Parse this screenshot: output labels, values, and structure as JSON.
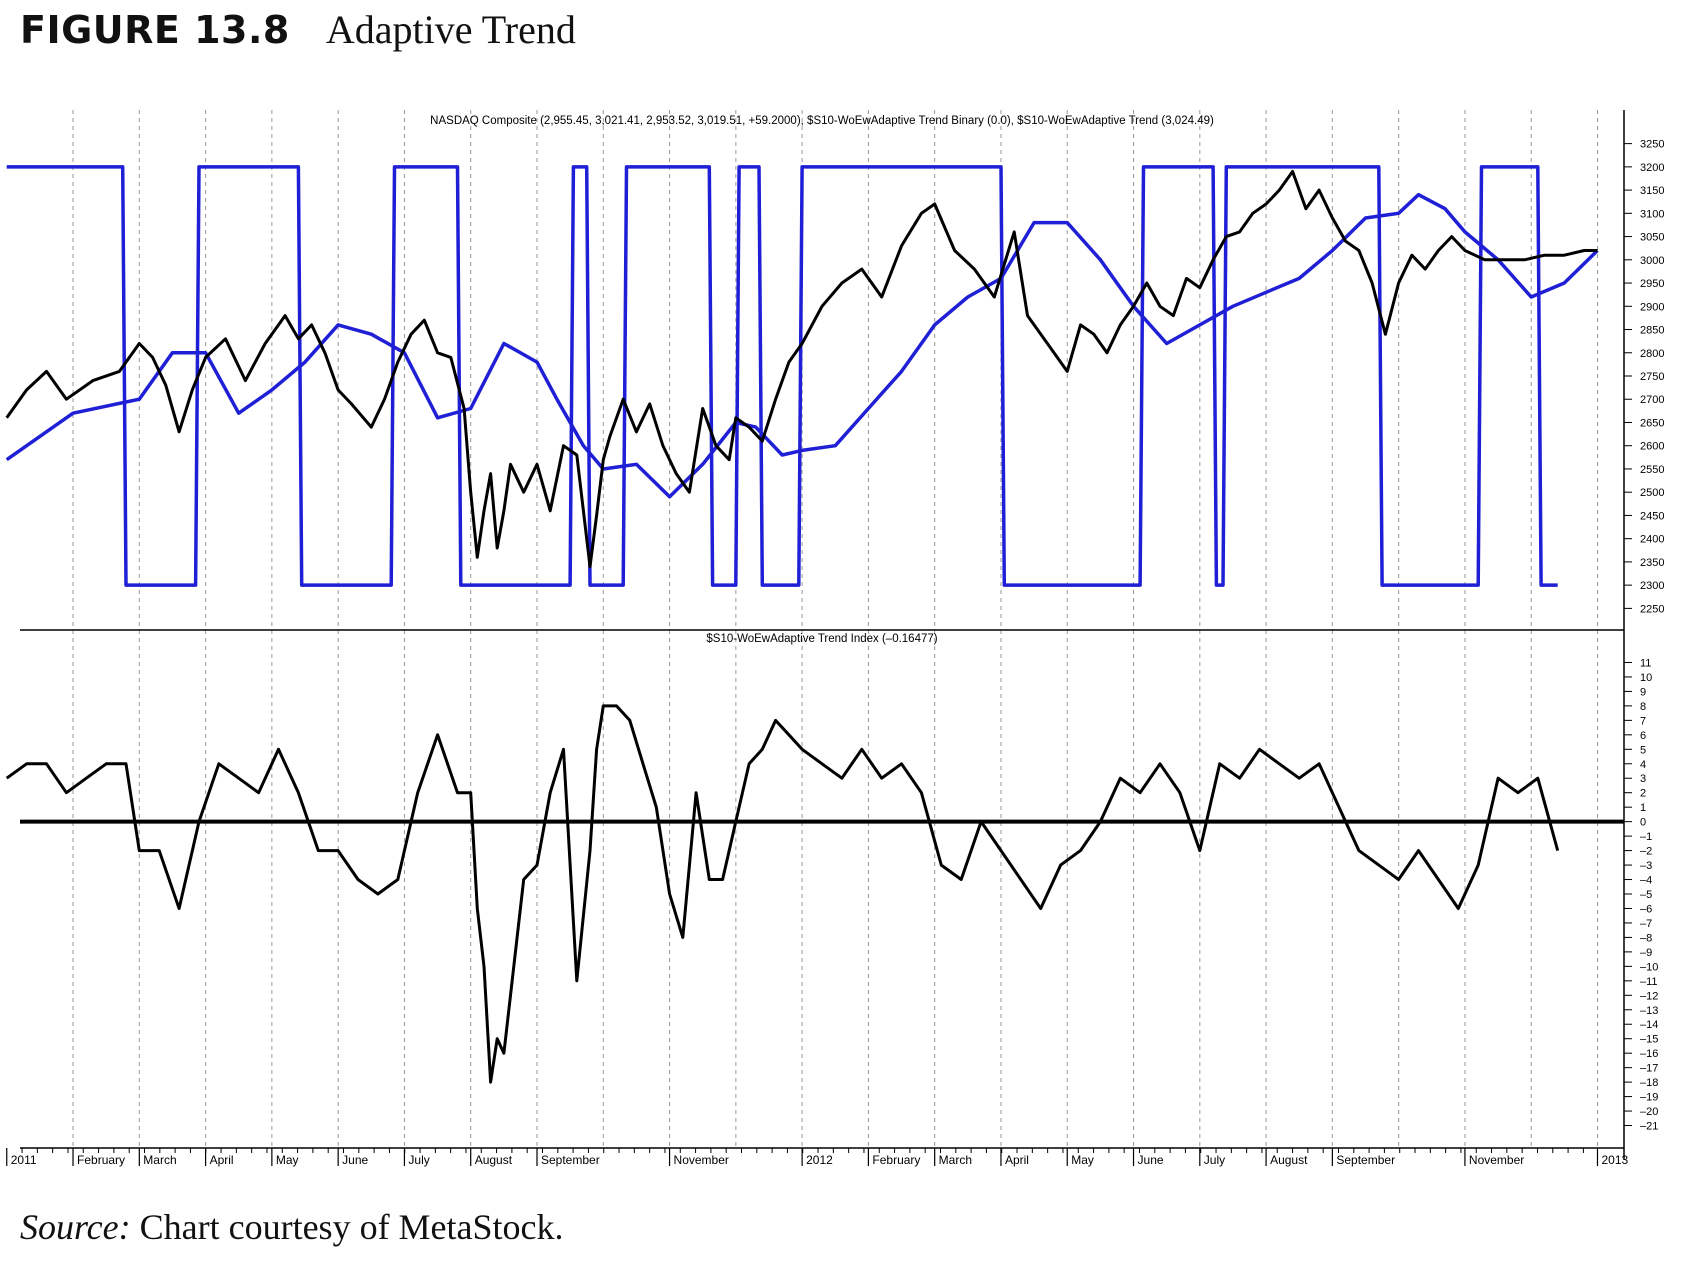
{
  "figure": {
    "number": "FIGURE 13.8",
    "title": "Adaptive Trend",
    "source_label": "Source:",
    "source_text": "Chart courtesy of MetaStock."
  },
  "colors": {
    "price": "#000000",
    "trend": "#1f1fd6",
    "grid": "#9a9a9a"
  },
  "chart_data": [
    {
      "type": "line",
      "title": "NASDAQ Composite (2,955.45, 3,021.41, 2,953.52, 3,019.51, +59.2000), $S10-WoEwAdaptive Trend Binary (0.0), $S10-WoEwAdaptive Trend  (3,024.49)",
      "ylim": [
        2225,
        3275
      ],
      "yticks": [
        3250,
        3200,
        3150,
        3100,
        3050,
        3000,
        2950,
        2900,
        2850,
        2800,
        2750,
        2700,
        2650,
        2600,
        2550,
        2500,
        2450,
        2400,
        2350,
        2300,
        2250
      ],
      "x_months": [
        0,
        1,
        2,
        3,
        4,
        5,
        6,
        7,
        8,
        9,
        10,
        11,
        12,
        13,
        14,
        15,
        16,
        17,
        18,
        19,
        20,
        21,
        22,
        23,
        24
      ],
      "series": [
        {
          "key": "price",
          "x": [
            0,
            0.3,
            0.6,
            0.9,
            1.3,
            1.7,
            2.0,
            2.2,
            2.4,
            2.6,
            2.8,
            3.0,
            3.3,
            3.6,
            3.9,
            4.2,
            4.4,
            4.6,
            4.8,
            5.0,
            5.2,
            5.5,
            5.7,
            5.9,
            6.1,
            6.3,
            6.5,
            6.7,
            6.9,
            7.0,
            7.1,
            7.2,
            7.3,
            7.4,
            7.5,
            7.6,
            7.8,
            8.0,
            8.2,
            8.4,
            8.6,
            8.8,
            8.9,
            9.0,
            9.1,
            9.3,
            9.5,
            9.7,
            9.9,
            10.1,
            10.3,
            10.5,
            10.7,
            10.9,
            11.0,
            11.2,
            11.4,
            11.6,
            11.8,
            12.0,
            12.3,
            12.6,
            12.9,
            13.2,
            13.5,
            13.8,
            14.0,
            14.3,
            14.6,
            14.9,
            15.2,
            15.4,
            15.7,
            16.0,
            16.2,
            16.4,
            16.6,
            16.8,
            17.0,
            17.2,
            17.4,
            17.6,
            17.8,
            18.0,
            18.2,
            18.4,
            18.6,
            18.8,
            19.0,
            19.2,
            19.4,
            19.6,
            19.8,
            20.0,
            20.2,
            20.4,
            20.6,
            20.8,
            21.0,
            21.2,
            21.4,
            21.6,
            21.8,
            22.0,
            22.3,
            22.6,
            22.9,
            23.2,
            23.5,
            23.8,
            24.0
          ],
          "y": [
            2660,
            2720,
            2760,
            2700,
            2740,
            2760,
            2820,
            2790,
            2730,
            2630,
            2720,
            2790,
            2830,
            2740,
            2820,
            2880,
            2830,
            2860,
            2800,
            2720,
            2690,
            2640,
            2700,
            2780,
            2840,
            2870,
            2800,
            2790,
            2680,
            2500,
            2360,
            2460,
            2540,
            2380,
            2460,
            2560,
            2500,
            2560,
            2460,
            2600,
            2580,
            2340,
            2450,
            2570,
            2620,
            2700,
            2630,
            2690,
            2600,
            2540,
            2500,
            2680,
            2600,
            2570,
            2660,
            2640,
            2610,
            2700,
            2780,
            2820,
            2900,
            2950,
            2980,
            2920,
            3030,
            3100,
            3120,
            3020,
            2980,
            2920,
            3060,
            2880,
            2820,
            2760,
            2860,
            2840,
            2800,
            2860,
            2900,
            2950,
            2900,
            2880,
            2960,
            2940,
            3000,
            3050,
            3060,
            3100,
            3120,
            3150,
            3190,
            3110,
            3150,
            3090,
            3040,
            3020,
            2950,
            2840,
            2950,
            3010,
            2980,
            3020,
            3050,
            3020,
            3000,
            3000,
            3000,
            3010,
            3010,
            3020,
            3020
          ],
          "label": "NASDAQ Composite"
        },
        {
          "key": "trend",
          "x": [
            0,
            1,
            2,
            2.5,
            3,
            3.5,
            4,
            4.5,
            5,
            5.5,
            6,
            6.5,
            7,
            7.5,
            8,
            8.3,
            8.7,
            9,
            9.5,
            10,
            10.5,
            11,
            11.3,
            11.7,
            12,
            12.5,
            13,
            13.5,
            14,
            14.5,
            15,
            15.5,
            16,
            16.5,
            17,
            17.5,
            18,
            18.5,
            19,
            19.5,
            20,
            20.5,
            21,
            21.3,
            21.7,
            22,
            22.5,
            23,
            23.5,
            24
          ],
          "y": [
            2570,
            2670,
            2700,
            2800,
            2800,
            2670,
            2720,
            2780,
            2860,
            2840,
            2800,
            2660,
            2680,
            2820,
            2780,
            2700,
            2600,
            2550,
            2560,
            2490,
            2560,
            2650,
            2640,
            2580,
            2590,
            2600,
            2680,
            2760,
            2860,
            2920,
            2960,
            3080,
            3080,
            3000,
            2900,
            2820,
            2860,
            2900,
            2930,
            2960,
            3020,
            3090,
            3100,
            3140,
            3110,
            3060,
            3000,
            2920,
            2950,
            3020
          ],
          "label": "$S10-WoEwAdaptive Trend"
        },
        {
          "key": "binary",
          "x": [
            0,
            1.75,
            1.8,
            2.85,
            2.9,
            4.4,
            4.45,
            5.8,
            5.85,
            6.8,
            6.85,
            8.5,
            8.55,
            8.75,
            8.8,
            9.3,
            9.35,
            10.6,
            10.65,
            11.0,
            11.05,
            11.35,
            11.4,
            11.95,
            12.0,
            15.0,
            15.05,
            17.1,
            17.15,
            18.2,
            18.25,
            18.35,
            18.4,
            20.7,
            20.75,
            22.2,
            22.25,
            23.1,
            23.15,
            23.4
          ],
          "y": [
            1,
            1,
            0,
            0,
            1,
            1,
            0,
            0,
            1,
            1,
            0,
            0,
            1,
            1,
            0,
            0,
            1,
            1,
            0,
            0,
            1,
            1,
            0,
            0,
            1,
            1,
            0,
            0,
            1,
            1,
            0,
            0,
            1,
            1,
            0,
            0,
            1,
            1,
            0,
            0
          ],
          "label": "$S10-WoEwAdaptive Trend Binary",
          "on_level": 3200,
          "off_level": 2300
        }
      ]
    },
    {
      "type": "line",
      "title": "$S10-WoEwAdaptive Trend Index  (–0.16477)",
      "ylim": [
        -22,
        12
      ],
      "yticks": [
        11,
        10,
        9,
        8,
        7,
        6,
        5,
        4,
        3,
        2,
        1,
        0,
        -1,
        -2,
        -3,
        -4,
        -5,
        -6,
        -7,
        -8,
        -9,
        -10,
        -11,
        -12,
        -13,
        -14,
        -15,
        -16,
        -17,
        -18,
        -19,
        -20,
        -21
      ],
      "ytick_labels": [
        "11",
        "10",
        "9",
        "8",
        "7",
        "6",
        "5",
        "4",
        "3",
        "2",
        "1",
        "0",
        "–1",
        "–2",
        "–3",
        "–4",
        "–5",
        "–6",
        "–7",
        "–8",
        "–9",
        "–10",
        "–11",
        "–12",
        "–13",
        "–14",
        "–15",
        "–16",
        "–17",
        "–18",
        "–19",
        "–20",
        "–21"
      ],
      "zero_line": 0,
      "series": [
        {
          "key": "index",
          "x": [
            0,
            0.3,
            0.6,
            0.9,
            1.2,
            1.5,
            1.8,
            2.0,
            2.3,
            2.6,
            2.9,
            3.2,
            3.5,
            3.8,
            4.1,
            4.4,
            4.7,
            5.0,
            5.3,
            5.6,
            5.9,
            6.2,
            6.5,
            6.8,
            7.0,
            7.1,
            7.2,
            7.3,
            7.4,
            7.5,
            7.6,
            7.8,
            8.0,
            8.2,
            8.4,
            8.6,
            8.8,
            8.9,
            9.0,
            9.2,
            9.4,
            9.6,
            9.8,
            10.0,
            10.2,
            10.4,
            10.6,
            10.8,
            11.0,
            11.2,
            11.4,
            11.6,
            11.8,
            12.0,
            12.3,
            12.6,
            12.9,
            13.2,
            13.5,
            13.8,
            14.1,
            14.4,
            14.7,
            15.0,
            15.3,
            15.6,
            15.9,
            16.2,
            16.5,
            16.8,
            17.1,
            17.4,
            17.7,
            18.0,
            18.3,
            18.6,
            18.9,
            19.2,
            19.5,
            19.8,
            20.1,
            20.4,
            20.7,
            21.0,
            21.3,
            21.6,
            21.9,
            22.2,
            22.5,
            22.8,
            23.1,
            23.4
          ],
          "y": [
            3,
            4,
            4,
            2,
            3,
            4,
            4,
            -2,
            -2,
            -6,
            0,
            4,
            3,
            2,
            5,
            2,
            -2,
            -2,
            -4,
            -5,
            -4,
            2,
            6,
            2,
            2,
            -6,
            -10,
            -18,
            -15,
            -16,
            -12,
            -4,
            -3,
            2,
            5,
            -11,
            -2,
            5,
            8,
            8,
            7,
            4,
            1,
            -5,
            -8,
            2,
            -4,
            -4,
            0,
            4,
            5,
            7,
            6,
            5,
            4,
            3,
            5,
            3,
            4,
            2,
            -3,
            -4,
            0,
            -2,
            -4,
            -6,
            -3,
            -2,
            0,
            3,
            2,
            4,
            2,
            -2,
            4,
            3,
            5,
            4,
            3,
            4,
            1,
            -2,
            -3,
            -4,
            -2,
            -4,
            -6,
            -3,
            3,
            2,
            3,
            -2
          ],
          "label": "$S10-WoEwAdaptive Trend Index"
        }
      ]
    }
  ],
  "x_axis": {
    "labels": [
      {
        "m": 0,
        "text": "2011"
      },
      {
        "m": 1,
        "text": "February"
      },
      {
        "m": 2,
        "text": "March"
      },
      {
        "m": 3,
        "text": "April"
      },
      {
        "m": 4,
        "text": "May"
      },
      {
        "m": 5,
        "text": "June"
      },
      {
        "m": 6,
        "text": "July"
      },
      {
        "m": 7,
        "text": "August"
      },
      {
        "m": 8,
        "text": "September"
      },
      {
        "m": 10,
        "text": "November"
      },
      {
        "m": 12,
        "text": "2012"
      },
      {
        "m": 13,
        "text": "February"
      },
      {
        "m": 14,
        "text": "March"
      },
      {
        "m": 15,
        "text": "April"
      },
      {
        "m": 16,
        "text": "May"
      },
      {
        "m": 17,
        "text": "June"
      },
      {
        "m": 18,
        "text": "July"
      },
      {
        "m": 19,
        "text": "August"
      },
      {
        "m": 20,
        "text": "September"
      },
      {
        "m": 22,
        "text": "November"
      },
      {
        "m": 24,
        "text": "2013"
      }
    ]
  }
}
